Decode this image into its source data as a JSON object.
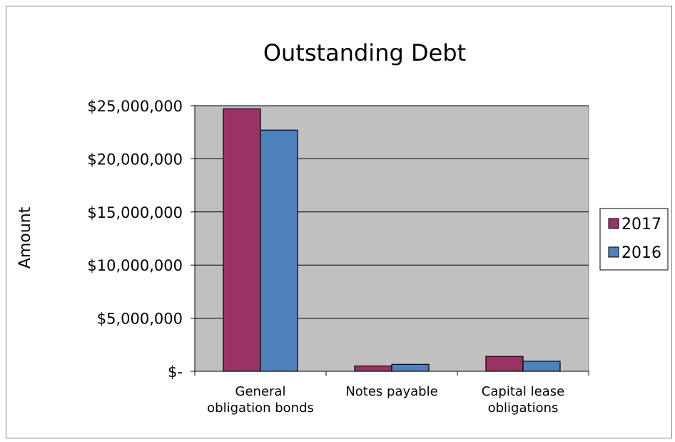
{
  "chart_data": {
    "type": "bar",
    "title": "Outstanding Debt",
    "xlabel": "",
    "ylabel": "Amount",
    "categories": [
      [
        "General",
        "obligation bonds"
      ],
      [
        "Notes payable"
      ],
      [
        "Capital lease",
        "obligations"
      ]
    ],
    "series": [
      {
        "name": "2017",
        "color": "#993366",
        "values": [
          24700000,
          500000,
          1400000
        ]
      },
      {
        "name": "2016",
        "color": "#4f81bd",
        "values": [
          22700000,
          650000,
          950000
        ]
      }
    ],
    "ylim": [
      0,
      25000000
    ],
    "yticks": [
      0,
      5000000,
      10000000,
      15000000,
      20000000,
      25000000
    ],
    "ytick_labels": [
      "$-",
      "$5,000,000",
      "$10,000,000",
      "$15,000,000",
      "$20,000,000",
      "$25,000,000"
    ],
    "plot_background": "#c0c0c0",
    "grid": true,
    "legend_position": "right"
  }
}
